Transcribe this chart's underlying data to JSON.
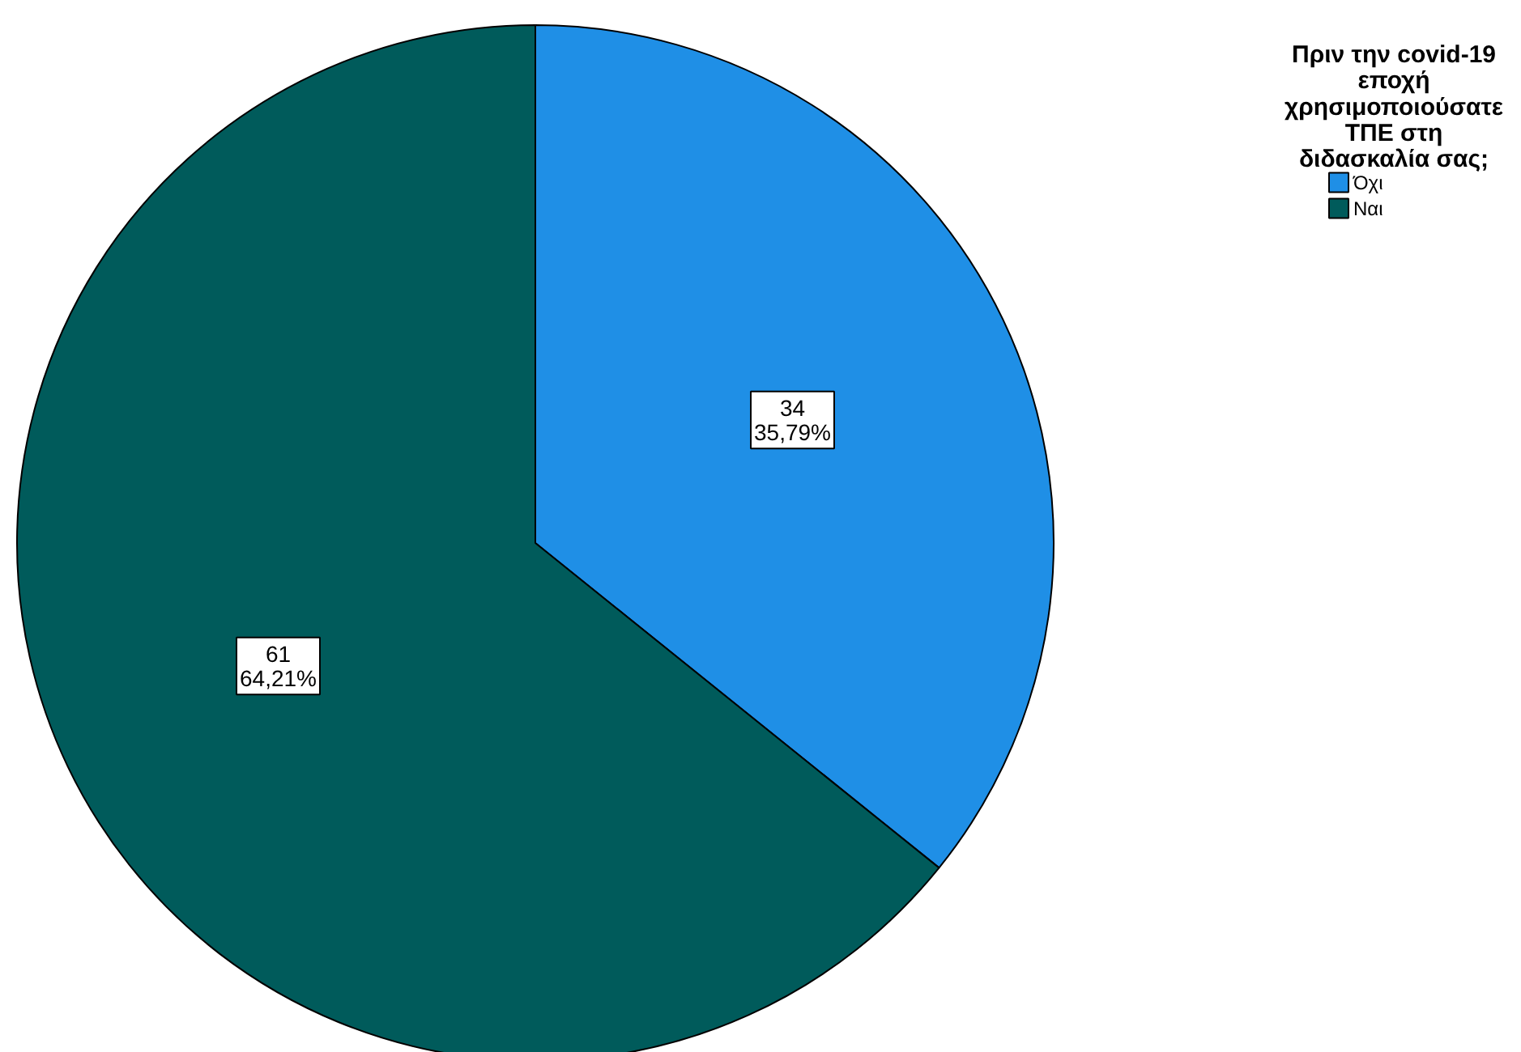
{
  "chart_data": {
    "type": "pie",
    "legend_title": "Πριν την covid-19\nεποχή\nχρησιμοποιούσατε\nΤΠΕ στη\nδιδασκαλία σας;",
    "categories": [
      "Όχι",
      "Ναι"
    ],
    "values": [
      34,
      61
    ],
    "colors": [
      "#1f8fe6",
      "#005b5b"
    ],
    "value_labels": [
      "34\n35,79%",
      "61\n64,21%"
    ],
    "legend": "top right"
  }
}
